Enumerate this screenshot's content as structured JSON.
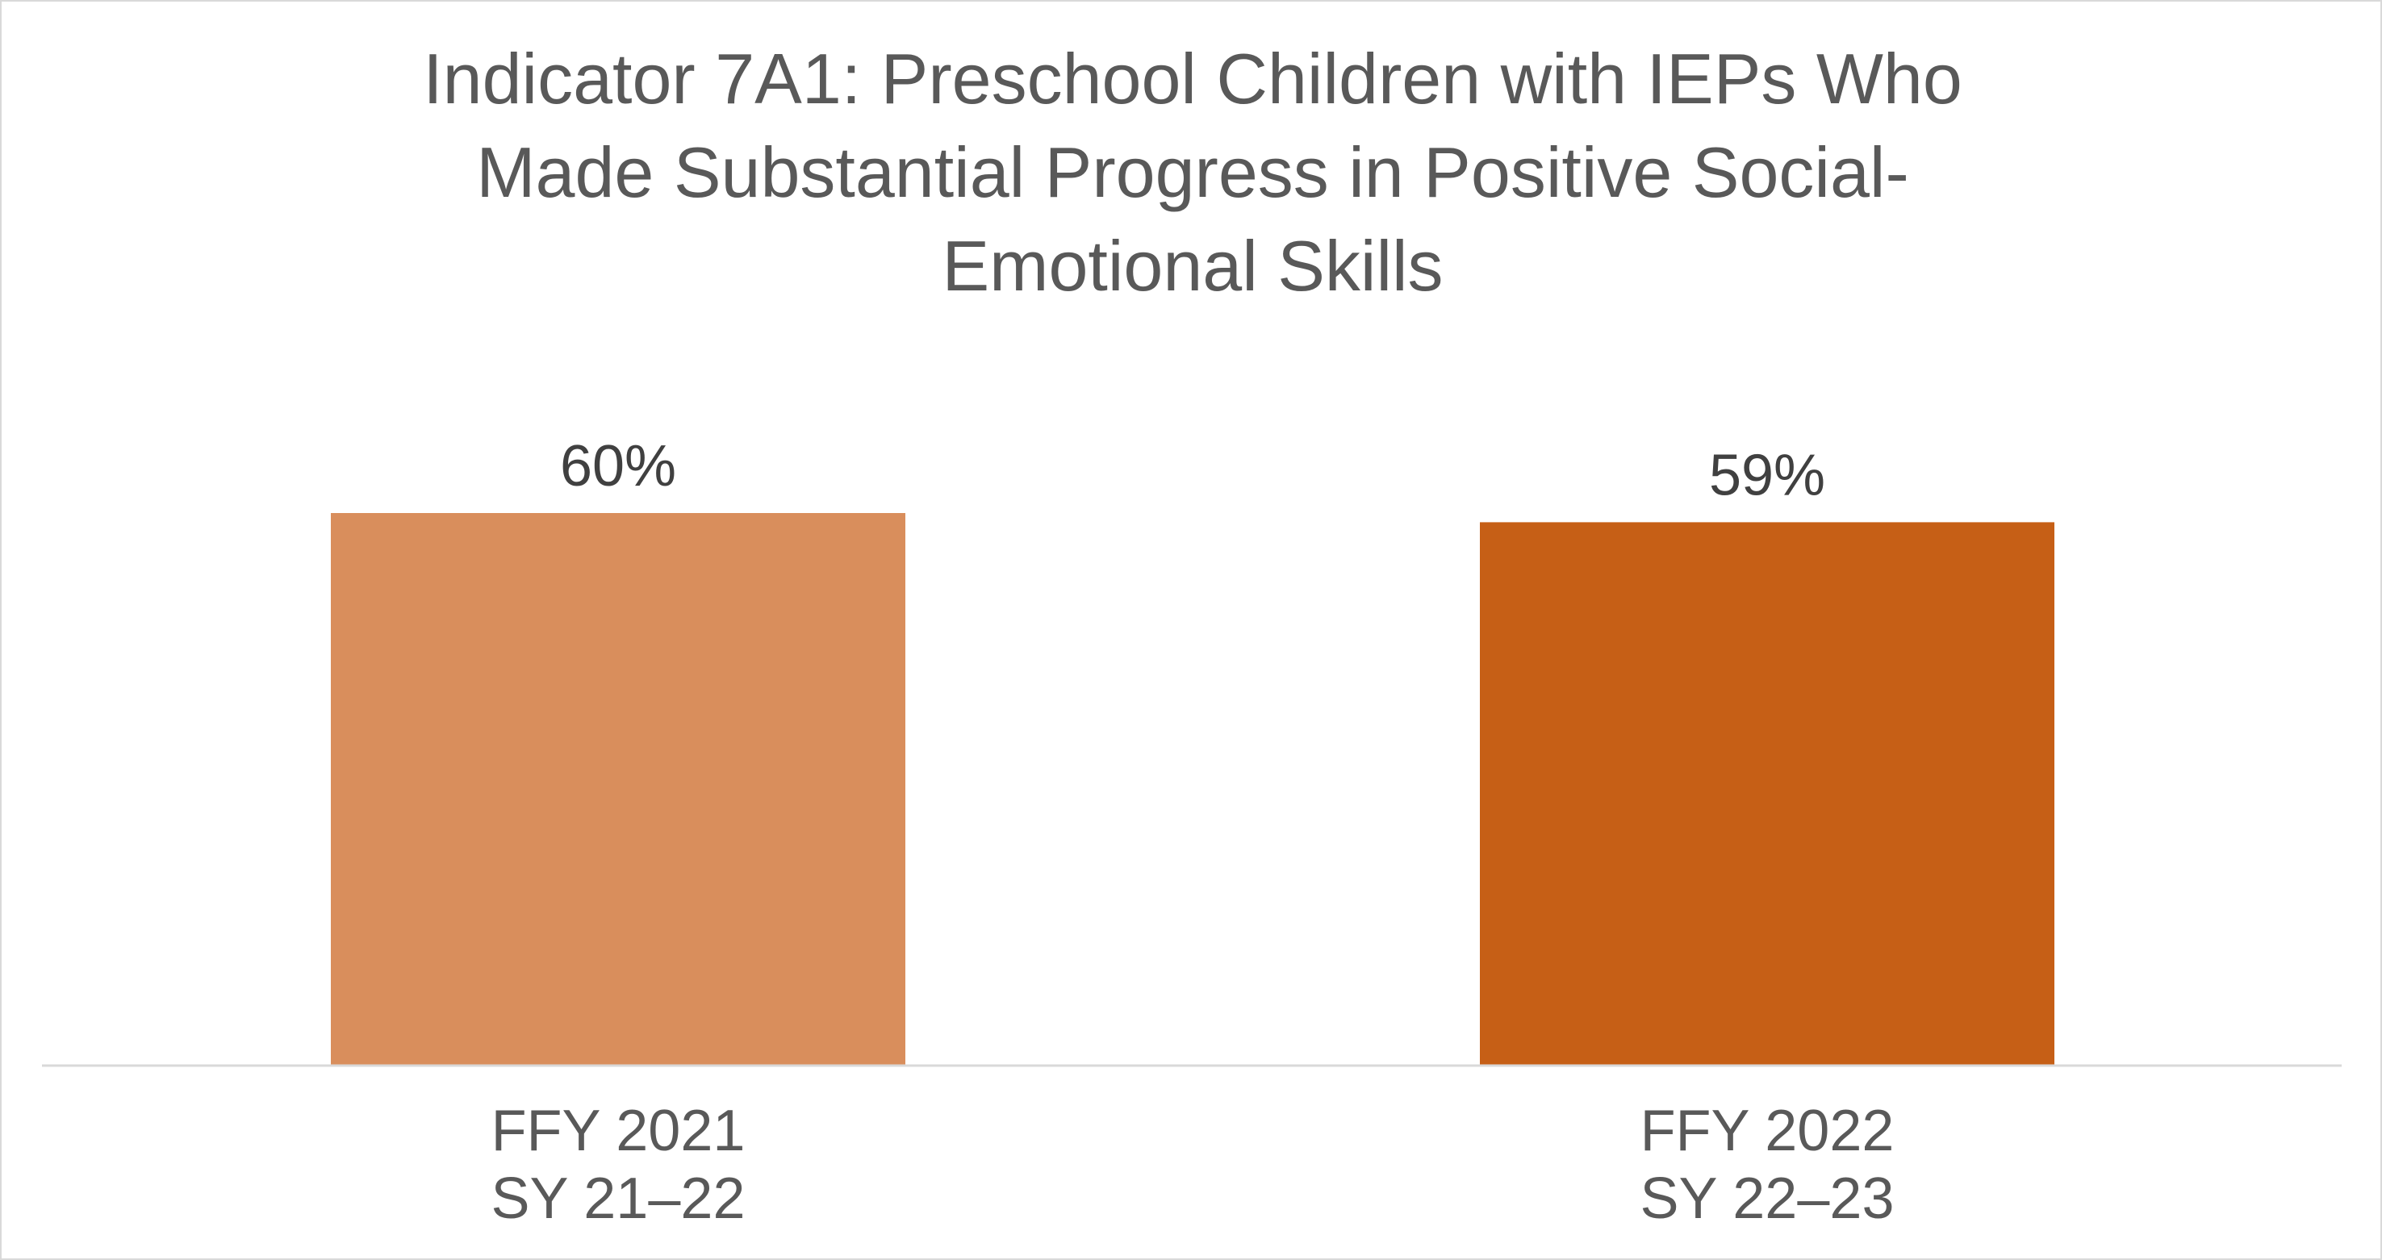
{
  "title_lines": [
    "Indicator 7A1: Preschool Children with IEPs Who",
    "Made Substantial Progress in Positive Social-",
    "Emotional Skills"
  ],
  "chart_data": {
    "type": "bar",
    "title": "Indicator 7A1: Preschool Children with IEPs Who Made Substantial Progress in Positive Social-Emotional Skills",
    "categories": [
      [
        "FFY 2021",
        "SY 21–22"
      ],
      [
        "FFY 2022",
        "SY 22–23"
      ]
    ],
    "values": [
      60,
      59
    ],
    "data_labels": [
      "60%",
      "59%"
    ],
    "bar_colors": [
      "#D98E5C",
      "#C65F16"
    ],
    "ylim": [
      0,
      100
    ],
    "grid": false,
    "legend": "none",
    "xlabel": "",
    "ylabel": ""
  },
  "colors": {
    "axis_line": "#D9D9D9",
    "title_text": "#595959",
    "data_label_text": "#404040",
    "category_text": "#595959"
  }
}
